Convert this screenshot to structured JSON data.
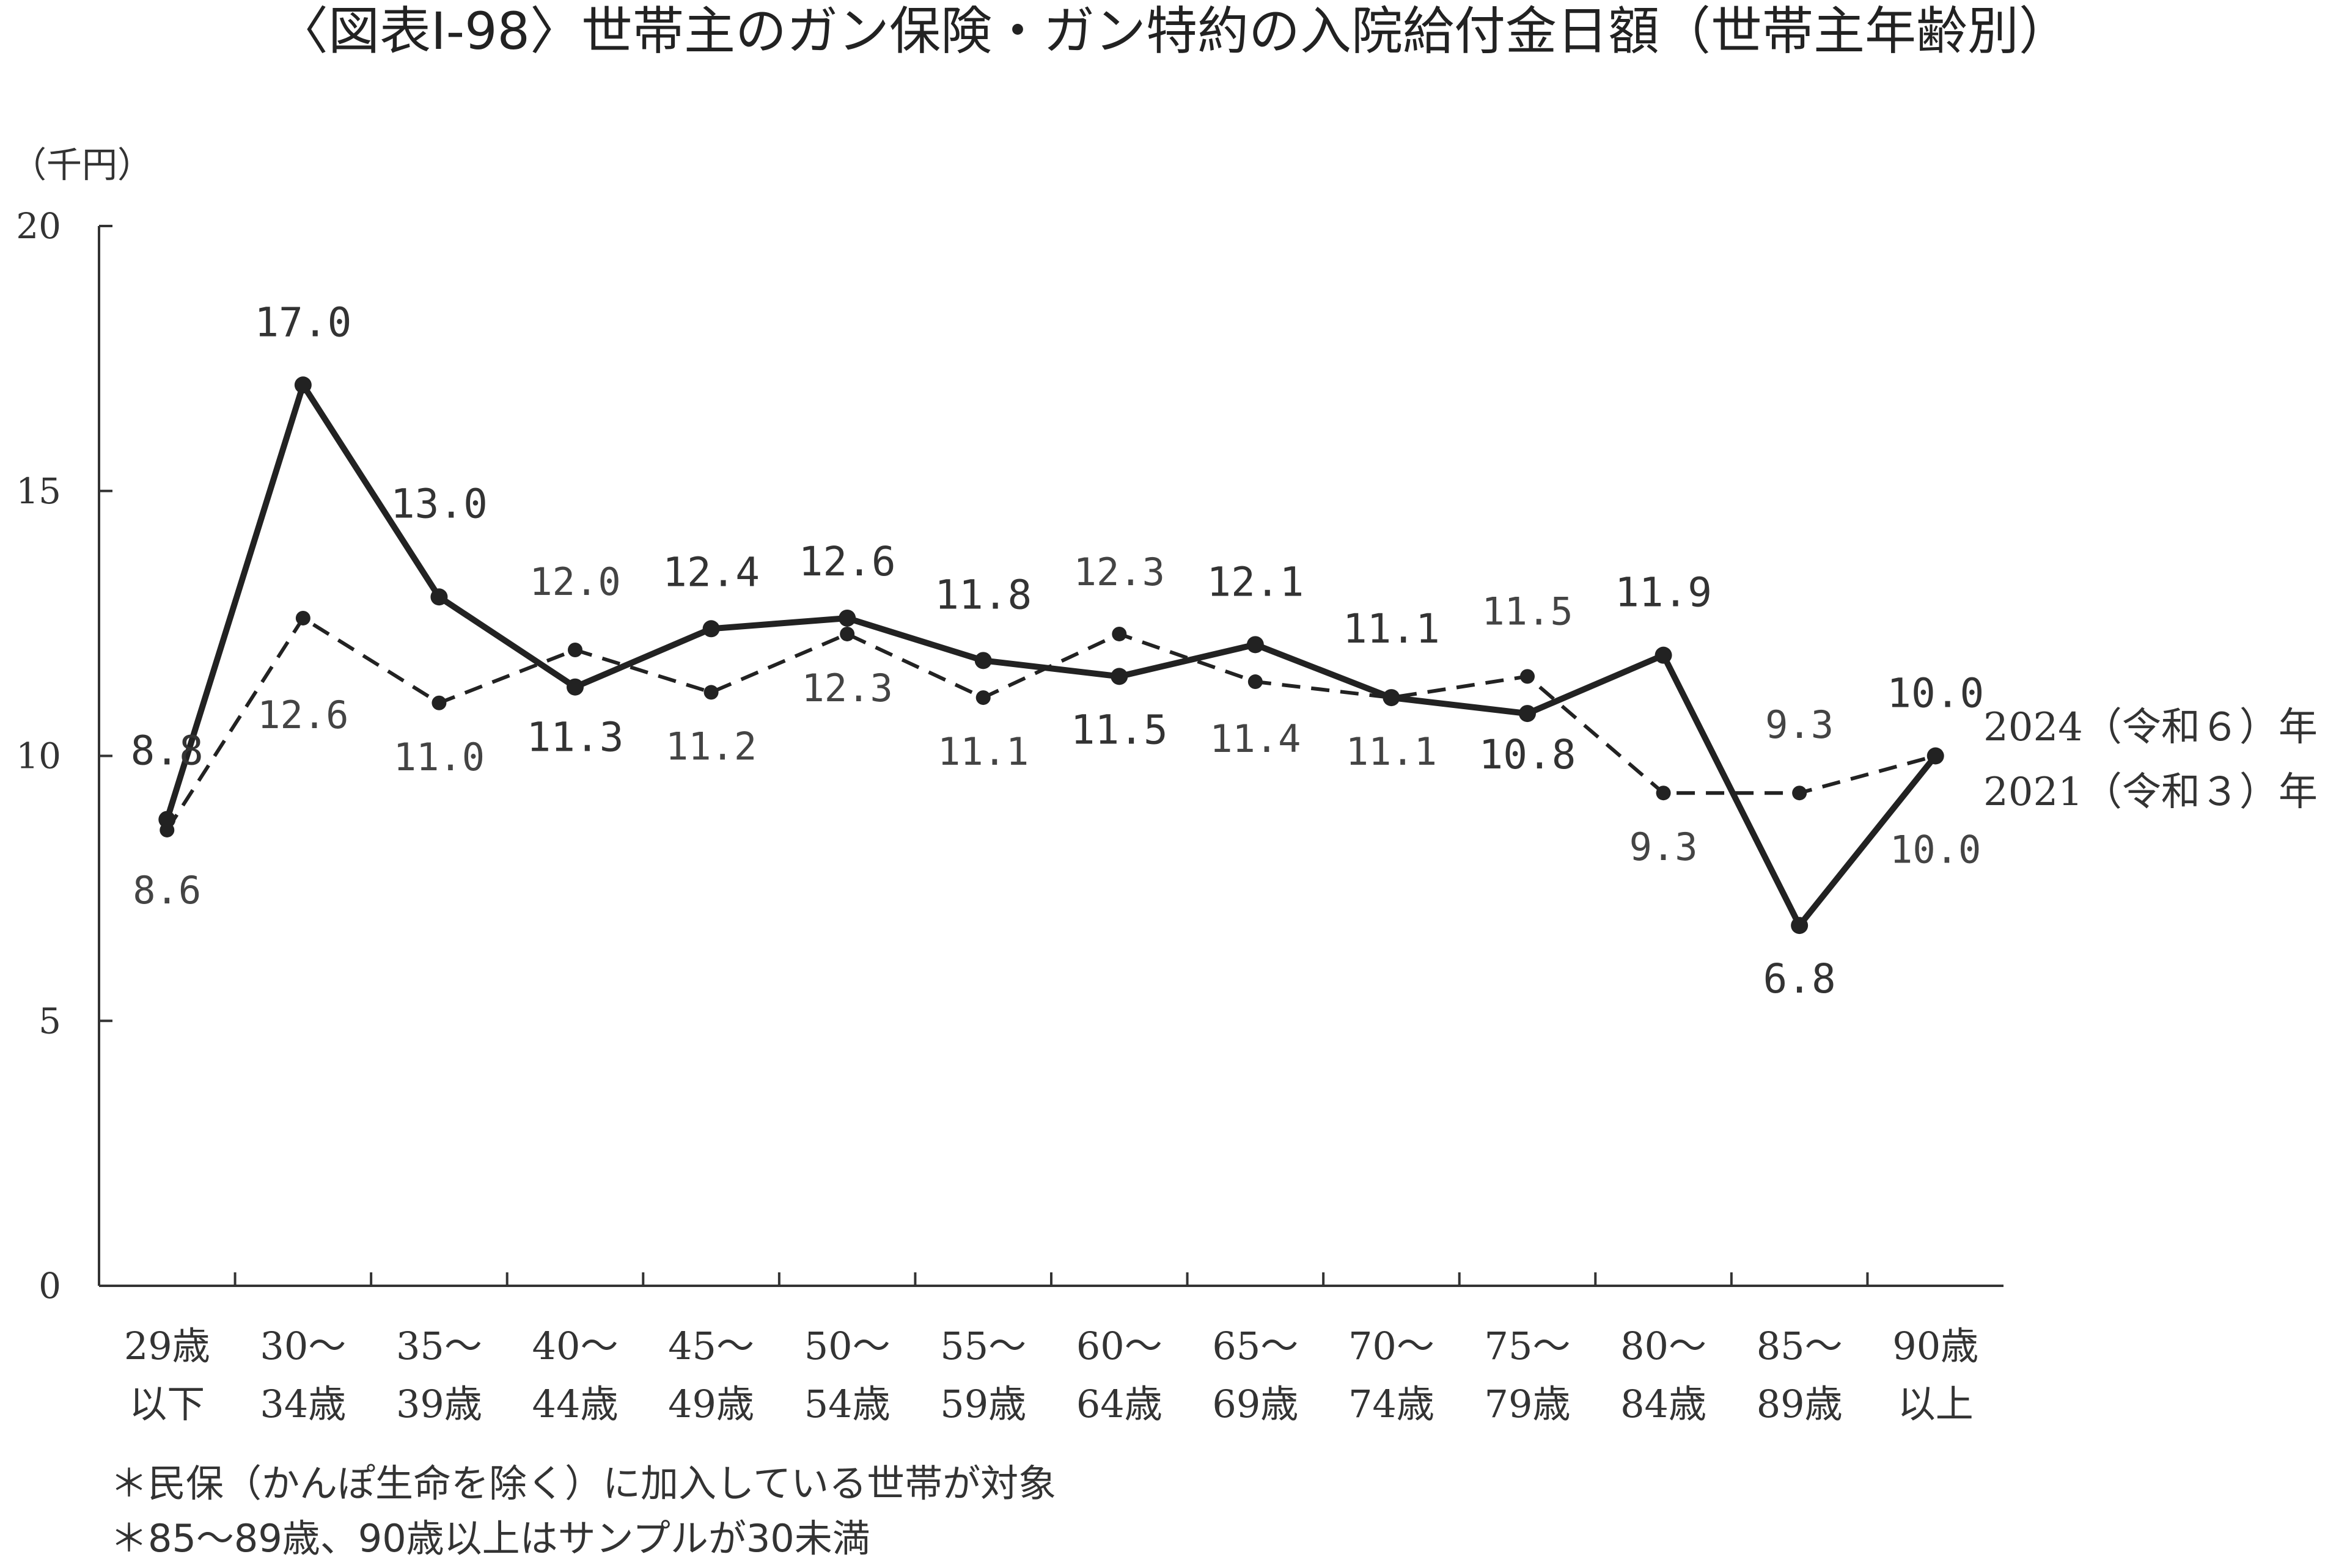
{
  "chart_data": {
    "type": "line",
    "title": "〈図表Ⅰ-98〉世帯主のガン保険・ガン特約の入院給付金日額（世帯主年齢別）",
    "ylabel": "（千円）",
    "ylim": [
      0,
      20
    ],
    "yticks": [
      "0",
      "5",
      "10",
      "15",
      "20"
    ],
    "grid": false,
    "categories": [
      [
        "29歳",
        "以下"
      ],
      [
        "30～",
        "34歳"
      ],
      [
        "35～",
        "39歳"
      ],
      [
        "40～",
        "44歳"
      ],
      [
        "45～",
        "49歳"
      ],
      [
        "50～",
        "54歳"
      ],
      [
        "55～",
        "59歳"
      ],
      [
        "60～",
        "64歳"
      ],
      [
        "65～",
        "69歳"
      ],
      [
        "70～",
        "74歳"
      ],
      [
        "75～",
        "79歳"
      ],
      [
        "80～",
        "84歳"
      ],
      [
        "85～",
        "89歳"
      ],
      [
        "90歳",
        "以上"
      ]
    ],
    "series": [
      {
        "name": "2024（令和６）年",
        "style": "solid",
        "values": [
          8.8,
          17.0,
          13.0,
          11.3,
          12.4,
          12.6,
          11.8,
          11.5,
          12.1,
          11.1,
          10.8,
          11.9,
          6.8,
          10.0
        ],
        "labels": [
          "8.8",
          "17.0",
          "13.0",
          "11.3",
          "12.4",
          "12.6",
          "11.8",
          "11.5",
          "12.1",
          "11.1",
          "10.8",
          "11.9",
          "6.8",
          "10.0"
        ]
      },
      {
        "name": "2021（令和３）年",
        "style": "dashed",
        "values": [
          8.6,
          12.6,
          11.0,
          12.0,
          11.2,
          12.3,
          11.1,
          12.3,
          11.4,
          11.1,
          11.5,
          9.3,
          9.3,
          10.0
        ],
        "labels": [
          "8.6",
          "12.6",
          "11.0",
          "12.0",
          "11.2",
          "12.3",
          "11.1",
          "12.3",
          "11.4",
          "11.1",
          "11.5",
          "9.3",
          "9.3",
          "10.0"
        ]
      }
    ],
    "notes": [
      "＊民保（かんぽ生命を除く）に加入している世帯が対象",
      "＊85～89歳、90歳以上はサンプルが30未満"
    ]
  }
}
